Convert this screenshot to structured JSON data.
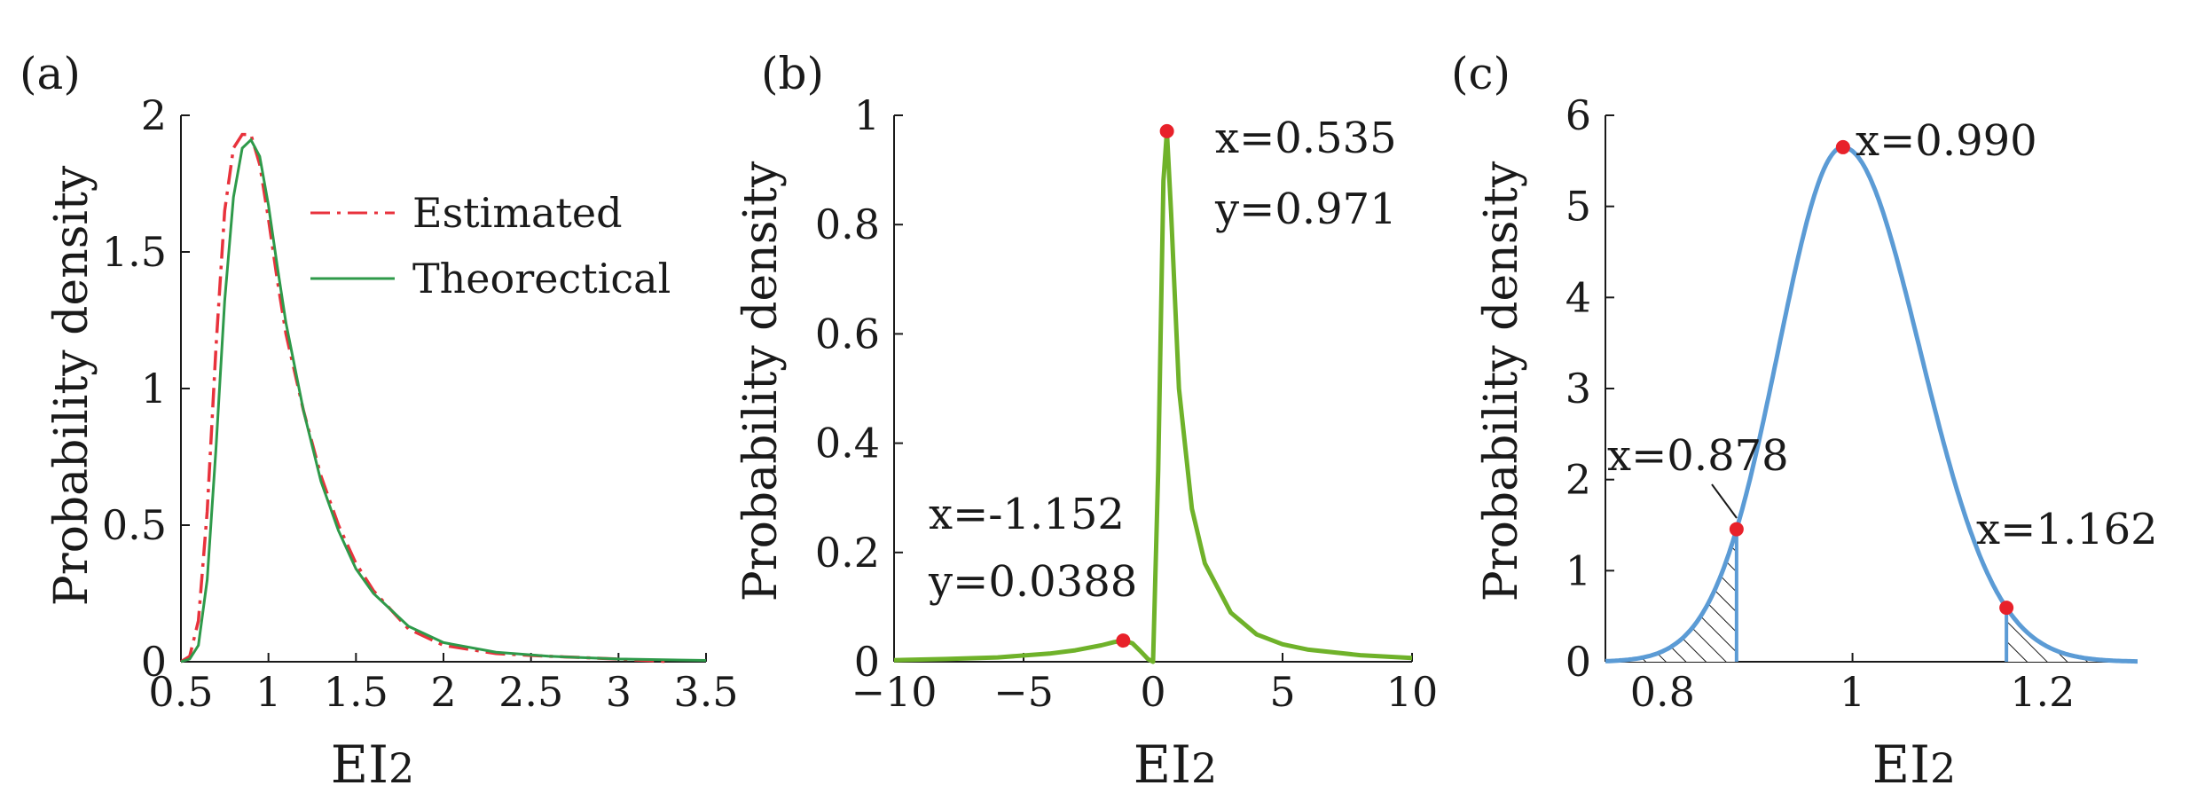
{
  "chart_data": [
    {
      "panel_label": "(a)",
      "type": "line",
      "xlabel_main": "EI",
      "xlabel_sub": "2",
      "ylabel": "Probability density",
      "xlim": [
        0.5,
        3.5
      ],
      "ylim": [
        0,
        2
      ],
      "xticks": [
        "0.5",
        "1",
        "1.5",
        "2",
        "2.5",
        "3",
        "3.5"
      ],
      "yticks": [
        "0",
        "0.5",
        "1",
        "1.5",
        "2"
      ],
      "grid": false,
      "legend_position": "top-right",
      "series": [
        {
          "name": "Estimated",
          "style": "dash-dot",
          "color": "#e8323c",
          "x": [
            0.5,
            0.55,
            0.6,
            0.65,
            0.7,
            0.75,
            0.8,
            0.85,
            0.9,
            0.95,
            1.0,
            1.05,
            1.1,
            1.2,
            1.3,
            1.4,
            1.5,
            1.6,
            1.8,
            2.0,
            2.3,
            2.6,
            3.0,
            3.3
          ],
          "y": [
            0.0,
            0.02,
            0.15,
            0.55,
            1.15,
            1.65,
            1.88,
            1.93,
            1.93,
            1.82,
            1.62,
            1.4,
            1.2,
            0.92,
            0.68,
            0.5,
            0.36,
            0.26,
            0.12,
            0.06,
            0.03,
            0.02,
            0.01,
            0.0
          ]
        },
        {
          "name": "Theorectical",
          "style": "solid",
          "color": "#2e9a4a",
          "x": [
            0.5,
            0.55,
            0.6,
            0.65,
            0.7,
            0.75,
            0.8,
            0.85,
            0.9,
            0.95,
            1.0,
            1.05,
            1.1,
            1.2,
            1.3,
            1.4,
            1.5,
            1.6,
            1.8,
            2.0,
            2.3,
            2.6,
            3.0,
            3.5
          ],
          "y": [
            0.0,
            0.01,
            0.06,
            0.3,
            0.78,
            1.32,
            1.7,
            1.88,
            1.91,
            1.85,
            1.67,
            1.45,
            1.24,
            0.92,
            0.66,
            0.48,
            0.34,
            0.25,
            0.13,
            0.07,
            0.035,
            0.02,
            0.01,
            0.005
          ]
        }
      ]
    },
    {
      "panel_label": "(b)",
      "type": "line",
      "xlabel_main": "EI",
      "xlabel_sub": "2",
      "ylabel": "Probability density",
      "xlim": [
        -10,
        10
      ],
      "ylim": [
        0,
        1
      ],
      "xticks": [
        "−10",
        "−5",
        "0",
        "5",
        "10"
      ],
      "yticks": [
        "0",
        "0.2",
        "0.4",
        "0.6",
        "0.8",
        "1"
      ],
      "grid": false,
      "series": [
        {
          "color": "#6fb22a",
          "x": [
            -10,
            -8,
            -6,
            -4,
            -3,
            -2,
            -1.5,
            -1.152,
            -0.8,
            -0.5,
            -0.2,
            0.0,
            0.2,
            0.4,
            0.535,
            0.7,
            1.0,
            1.5,
            2,
            3,
            4,
            5,
            6,
            8,
            10
          ],
          "y": [
            0.003,
            0.005,
            0.008,
            0.015,
            0.021,
            0.03,
            0.036,
            0.0388,
            0.034,
            0.02,
            0.005,
            0.0,
            0.35,
            0.88,
            0.971,
            0.82,
            0.5,
            0.28,
            0.18,
            0.09,
            0.05,
            0.032,
            0.022,
            0.012,
            0.007
          ]
        }
      ],
      "annotations": [
        {
          "x": 0.535,
          "y": 0.971,
          "line1": "x=0.535",
          "line2": "y=0.971"
        },
        {
          "x": -1.152,
          "y": 0.0388,
          "line1": "x=-1.152",
          "line2": "y=0.0388"
        }
      ]
    },
    {
      "panel_label": "(c)",
      "type": "line",
      "xlabel_main": "EI",
      "xlabel_sub": "2",
      "ylabel": "Probability density",
      "xlim": [
        0.74,
        1.3
      ],
      "ylim": [
        0,
        6
      ],
      "xticks": [
        "0.8",
        "1",
        "1.2"
      ],
      "xtick_values": [
        0.8,
        1.0,
        1.2
      ],
      "yticks": [
        "0",
        "1",
        "2",
        "3",
        "4",
        "5",
        "6"
      ],
      "grid": false,
      "series": [
        {
          "color": "#5b9bd5",
          "distribution": {
            "peak_x": 0.99,
            "peak_y": 5.65,
            "sigma_left": 0.068,
            "sigma_right": 0.081
          }
        }
      ],
      "shaded_tails": {
        "left_below": 0.878,
        "right_above": 1.162
      },
      "annotations": [
        {
          "x": 0.99,
          "y": 5.65,
          "label": "x=0.990"
        },
        {
          "x": 0.878,
          "y": 1.6,
          "label": "x=0.878"
        },
        {
          "x": 1.162,
          "y": 0.89,
          "label": "x=1.162"
        }
      ]
    }
  ]
}
